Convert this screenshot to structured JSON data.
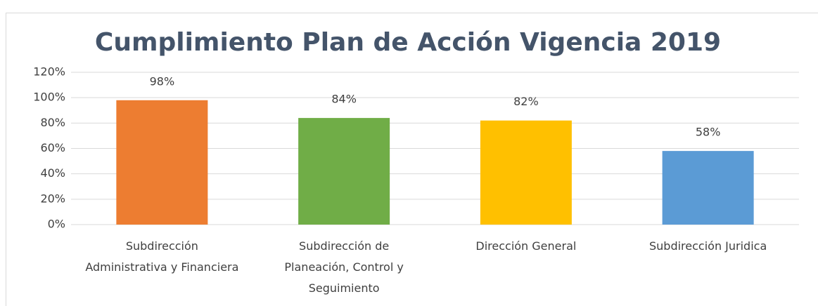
{
  "chart_data": {
    "type": "bar",
    "title": "Cumplimiento Plan de Acción Vigencia 2019",
    "categories": [
      "Subdirección Administrativa y Financiera",
      "Subdirección de Planeación, Control y Seguimiento",
      "Dirección General",
      "Subdirección Juridica"
    ],
    "values": [
      98,
      84,
      82,
      58
    ],
    "value_labels": [
      "98%",
      "84%",
      "82%",
      "58%"
    ],
    "colors": [
      "#ed7d31",
      "#70ad47",
      "#ffc000",
      "#5b9bd5"
    ],
    "ylim": [
      0,
      120
    ],
    "yticks": [
      {
        "value": 0,
        "label": "0%"
      },
      {
        "value": 20,
        "label": "20%"
      },
      {
        "value": 40,
        "label": "40%"
      },
      {
        "value": 60,
        "label": "60%"
      },
      {
        "value": 80,
        "label": "80%"
      },
      {
        "value": 100,
        "label": "100%"
      },
      {
        "value": 120,
        "label": "120%"
      }
    ],
    "grid": true
  }
}
